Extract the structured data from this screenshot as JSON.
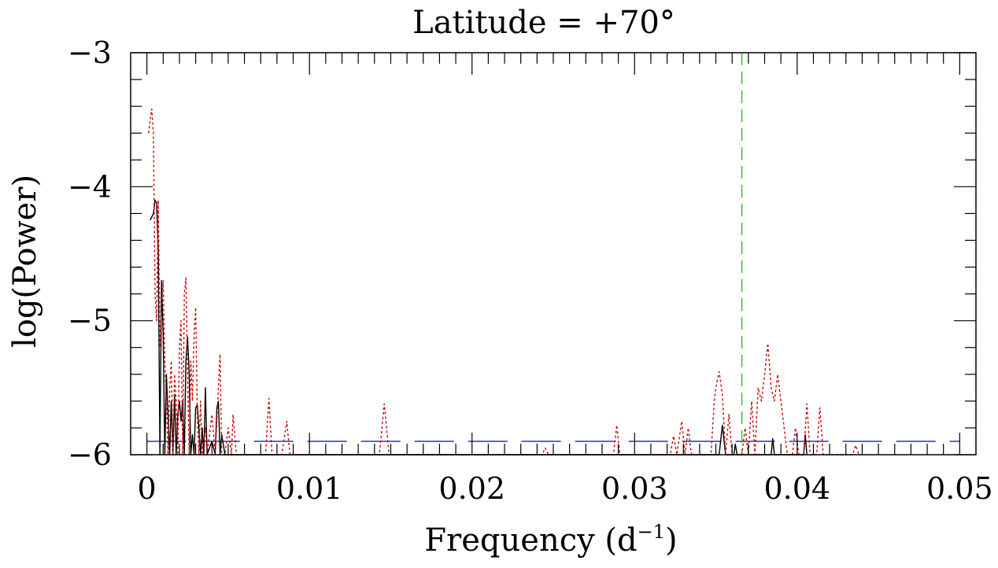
{
  "chart_data": {
    "type": "line",
    "title": "Latitude = +70°",
    "xlabel_main": "Frequency (d",
    "xlabel_sup": "−1",
    "xlabel_end": ")",
    "ylabel": "log(Power)",
    "xlim": [
      -0.001,
      0.051
    ],
    "ylim": [
      -6,
      -3
    ],
    "x_ticks": [
      0,
      0.01,
      0.02,
      0.03,
      0.04,
      0.05
    ],
    "x_tick_labels": [
      "0",
      "0.01",
      "0.02",
      "0.03",
      "0.04",
      "0.05"
    ],
    "y_ticks": [
      -6,
      -5,
      -4,
      -3
    ],
    "y_tick_labels": [
      "−6",
      "−5",
      "−4",
      "−3"
    ],
    "grid": false,
    "legend": "none",
    "series": [
      {
        "style": "solid",
        "color": "#000000",
        "points": [
          [
            0.0002,
            -4.25
          ],
          [
            0.0004,
            -4.2
          ],
          [
            0.0005,
            -4.1
          ],
          [
            0.0006,
            -4.12
          ],
          [
            0.0007,
            -4.5
          ],
          [
            0.0008,
            -6.0
          ],
          [
            0.0009,
            -4.7
          ],
          [
            0.001,
            -5.1
          ],
          [
            0.0011,
            -6.0
          ],
          [
            0.0012,
            -5.4
          ],
          [
            0.0013,
            -5.7
          ],
          [
            0.0014,
            -6.0
          ],
          [
            0.0015,
            -5.6
          ],
          [
            0.0016,
            -6.0
          ],
          [
            0.0017,
            -5.55
          ],
          [
            0.0018,
            -6.0
          ],
          [
            0.0019,
            -5.7
          ],
          [
            0.002,
            -5.6
          ],
          [
            0.0021,
            -5.75
          ],
          [
            0.0022,
            -5.6
          ],
          [
            0.0023,
            -6.0
          ],
          [
            0.0024,
            -5.3
          ],
          [
            0.0025,
            -5.12
          ],
          [
            0.0026,
            -5.4
          ],
          [
            0.0027,
            -6.0
          ],
          [
            0.0028,
            -5.85
          ],
          [
            0.0029,
            -6.0
          ],
          [
            0.003,
            -5.65
          ],
          [
            0.0031,
            -5.63
          ],
          [
            0.0032,
            -5.8
          ],
          [
            0.0033,
            -6.0
          ],
          [
            0.0034,
            -5.8
          ],
          [
            0.0035,
            -6.0
          ],
          [
            0.0036,
            -5.5
          ],
          [
            0.0037,
            -6.0
          ],
          [
            0.004,
            -5.9
          ],
          [
            0.0042,
            -6.0
          ],
          [
            0.0043,
            -5.65
          ],
          [
            0.0044,
            -5.6
          ],
          [
            0.0045,
            -6.0
          ],
          [
            0.0046,
            -5.85
          ],
          [
            0.0048,
            -6.0
          ],
          [
            0.0352,
            -6.0
          ],
          [
            0.0354,
            -5.78
          ],
          [
            0.0356,
            -6.0
          ],
          [
            0.0361,
            -6.0
          ],
          [
            0.0362,
            -5.92
          ],
          [
            0.0363,
            -6.0
          ],
          [
            0.0384,
            -6.0
          ],
          [
            0.0385,
            -5.88
          ],
          [
            0.0386,
            -6.0
          ],
          [
            0.0404,
            -6.0
          ],
          [
            0.0405,
            -5.85
          ],
          [
            0.0406,
            -6.0
          ]
        ]
      },
      {
        "style": "dotted",
        "color": "#cc0000",
        "points": [
          [
            0.0001,
            -3.6
          ],
          [
            0.0003,
            -3.42
          ],
          [
            0.0004,
            -3.6
          ],
          [
            0.0005,
            -4.8
          ],
          [
            0.0006,
            -5.0
          ],
          [
            0.0007,
            -4.1
          ],
          [
            0.0008,
            -5.2
          ],
          [
            0.0009,
            -4.9
          ],
          [
            0.001,
            -4.7
          ],
          [
            0.0011,
            -5.3
          ],
          [
            0.0012,
            -5.6
          ],
          [
            0.0013,
            -6.0
          ],
          [
            0.0014,
            -5.5
          ],
          [
            0.0015,
            -5.3
          ],
          [
            0.0016,
            -6.0
          ],
          [
            0.0017,
            -5.4
          ],
          [
            0.0018,
            -5.6
          ],
          [
            0.0019,
            -6.0
          ],
          [
            0.002,
            -5.2
          ],
          [
            0.0021,
            -5.0
          ],
          [
            0.0022,
            -6.0
          ],
          [
            0.0023,
            -4.8
          ],
          [
            0.0024,
            -4.68
          ],
          [
            0.0025,
            -5.4
          ],
          [
            0.0026,
            -6.0
          ],
          [
            0.0027,
            -5.3
          ],
          [
            0.0028,
            -5.6
          ],
          [
            0.0029,
            -5.1
          ],
          [
            0.003,
            -4.9
          ],
          [
            0.0031,
            -5.7
          ],
          [
            0.0032,
            -6.0
          ],
          [
            0.0033,
            -5.6
          ],
          [
            0.0034,
            -6.0
          ],
          [
            0.0036,
            -5.8
          ],
          [
            0.0037,
            -6.0
          ],
          [
            0.004,
            -5.7
          ],
          [
            0.0042,
            -6.0
          ],
          [
            0.0044,
            -5.5
          ],
          [
            0.0045,
            -5.25
          ],
          [
            0.0046,
            -6.0
          ],
          [
            0.0048,
            -6.0
          ],
          [
            0.005,
            -5.8
          ],
          [
            0.0052,
            -6.0
          ],
          [
            0.0053,
            -5.7
          ],
          [
            0.0055,
            -6.0
          ],
          [
            0.0073,
            -6.0
          ],
          [
            0.0075,
            -5.58
          ],
          [
            0.0077,
            -6.0
          ],
          [
            0.0083,
            -6.0
          ],
          [
            0.0086,
            -5.75
          ],
          [
            0.0088,
            -6.0
          ],
          [
            0.0143,
            -6.0
          ],
          [
            0.0146,
            -5.62
          ],
          [
            0.0149,
            -6.0
          ],
          [
            0.0243,
            -6.0
          ],
          [
            0.0245,
            -5.95
          ],
          [
            0.0247,
            -6.0
          ],
          [
            0.0287,
            -6.0
          ],
          [
            0.0289,
            -5.78
          ],
          [
            0.0291,
            -6.0
          ],
          [
            0.0322,
            -6.0
          ],
          [
            0.0324,
            -5.86
          ],
          [
            0.0326,
            -6.0
          ],
          [
            0.0329,
            -5.75
          ],
          [
            0.0331,
            -6.0
          ],
          [
            0.0333,
            -5.8
          ],
          [
            0.0335,
            -6.0
          ],
          [
            0.0347,
            -6.0
          ],
          [
            0.0349,
            -5.6
          ],
          [
            0.035,
            -5.5
          ],
          [
            0.0352,
            -5.38
          ],
          [
            0.0354,
            -5.55
          ],
          [
            0.0356,
            -6.0
          ],
          [
            0.0358,
            -5.7
          ],
          [
            0.036,
            -6.0
          ],
          [
            0.0366,
            -6.0
          ],
          [
            0.0368,
            -5.8
          ],
          [
            0.037,
            -6.0
          ],
          [
            0.0372,
            -5.6
          ],
          [
            0.0374,
            -6.0
          ],
          [
            0.0376,
            -5.5
          ],
          [
            0.0378,
            -5.6
          ],
          [
            0.038,
            -5.4
          ],
          [
            0.0382,
            -5.17
          ],
          [
            0.0384,
            -5.5
          ],
          [
            0.0386,
            -5.6
          ],
          [
            0.0388,
            -5.4
          ],
          [
            0.039,
            -5.6
          ],
          [
            0.0392,
            -5.8
          ],
          [
            0.0394,
            -6.0
          ],
          [
            0.0397,
            -6.0
          ],
          [
            0.0399,
            -5.8
          ],
          [
            0.0401,
            -6.0
          ],
          [
            0.0404,
            -6.0
          ],
          [
            0.0406,
            -5.62
          ],
          [
            0.0408,
            -6.0
          ],
          [
            0.0412,
            -6.0
          ],
          [
            0.0414,
            -5.65
          ],
          [
            0.0416,
            -6.0
          ],
          [
            0.0434,
            -6.0
          ],
          [
            0.0436,
            -5.93
          ],
          [
            0.0438,
            -6.0
          ]
        ]
      }
    ],
    "reference_lines": [
      {
        "orientation": "horizontal",
        "y": -5.9,
        "style": "long-dash",
        "color": "#0000cc",
        "x_range": [
          0,
          0.05
        ]
      },
      {
        "orientation": "vertical",
        "x": 0.0366,
        "style": "dash",
        "color": "#00cc00"
      }
    ]
  }
}
